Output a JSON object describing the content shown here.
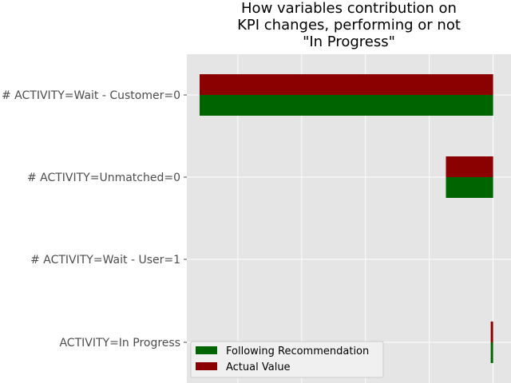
{
  "chart_data": {
    "type": "bar",
    "orientation": "horizontal",
    "title_lines": [
      "How variables contribution on",
      "KPI changes, performing or not",
      "\"In Progress\""
    ],
    "categories": [
      "# ACTIVITY=Wait - Customer=0",
      "# ACTIVITY=Unmatched=0",
      "# ACTIVITY=Wait - User=1",
      "ACTIVITY=In Progress"
    ],
    "series": [
      {
        "name": "Following Recommendation",
        "color": "#006400",
        "values": [
          -4.6,
          -0.74,
          0,
          -0.03
        ]
      },
      {
        "name": "Actual Value",
        "color": "#8b0000",
        "values": [
          -4.6,
          -0.74,
          0,
          -0.03
        ]
      }
    ],
    "xlim": [
      -4.8,
      0.28
    ],
    "gridlines_x": [
      -4,
      -3,
      -2,
      -1,
      0
    ],
    "x_tick_labels_visible": false,
    "grid": true,
    "background": "#e5e5e5",
    "legend": {
      "placement": "lower-left"
    }
  }
}
